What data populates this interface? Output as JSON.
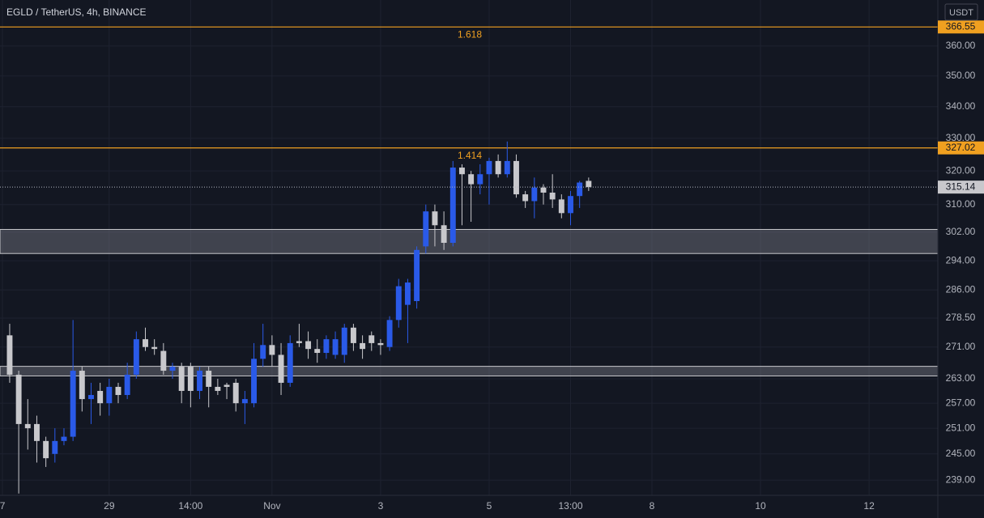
{
  "chart_data": {
    "type": "candlestick",
    "title": "EGLD / TetherUS, 4h, BINANCE",
    "currency": "USDT",
    "log_scale": true,
    "grid": true,
    "up_color": "#2a5ae8",
    "down_color": "#c8c8cc",
    "x": [
      0,
      1,
      2,
      3,
      4,
      5,
      6,
      7,
      8,
      9,
      10,
      11,
      12,
      13,
      14,
      15,
      16,
      17,
      18,
      19,
      20,
      21,
      22,
      23,
      24,
      25,
      26,
      27,
      28,
      29,
      30,
      31,
      32,
      33,
      34,
      35,
      36,
      37,
      38,
      39,
      40,
      41,
      42,
      43,
      44,
      45,
      46,
      47,
      48,
      49,
      50,
      51,
      52,
      53,
      54,
      55,
      56,
      57,
      58,
      59,
      60,
      61,
      62,
      63,
      64
    ],
    "open": [
      274,
      264,
      252,
      252,
      248,
      245,
      248,
      249,
      265,
      258,
      260,
      257,
      261,
      259,
      264,
      273,
      271,
      270,
      265,
      266,
      266,
      260,
      265,
      261,
      261.5,
      262,
      257,
      257,
      268,
      271.5,
      269,
      262,
      272.5,
      272.5,
      270.5,
      269.5,
      269,
      269,
      276,
      272,
      274,
      272,
      271,
      278,
      282,
      283,
      298,
      308,
      304,
      299,
      321,
      319,
      316,
      319,
      323,
      319,
      323,
      313,
      311,
      315,
      313.5,
      311.5,
      307.5,
      312.5,
      317
    ],
    "high": [
      277,
      265,
      258,
      254,
      249,
      251,
      251,
      278,
      266,
      262,
      262,
      263,
      262,
      267,
      275,
      276,
      273,
      272,
      267,
      267,
      267,
      266,
      266,
      263,
      262,
      263,
      260,
      272,
      277,
      274,
      272,
      274,
      277,
      275,
      273,
      274,
      275,
      277,
      277,
      274,
      275,
      273,
      279,
      289,
      289,
      298,
      310,
      310,
      308,
      323,
      322,
      320,
      322,
      324,
      325,
      329,
      325,
      314,
      318,
      316,
      319,
      313,
      314,
      317,
      318
    ],
    "low": [
      262,
      236,
      246,
      243,
      242,
      243,
      247,
      248,
      255,
      252,
      254,
      254,
      257,
      258,
      263,
      270,
      269,
      264,
      263,
      257,
      256,
      258,
      256,
      259,
      258,
      255,
      252,
      256,
      266,
      266,
      259,
      261,
      271,
      268,
      267,
      268,
      268,
      267,
      270,
      268,
      270,
      269,
      270,
      276,
      272,
      281,
      296,
      298,
      297,
      298,
      304,
      305,
      313,
      310,
      318,
      318,
      312,
      309,
      306,
      310,
      309,
      306,
      304,
      309,
      314
    ],
    "close": [
      264,
      252,
      251,
      248,
      244,
      248,
      249,
      265,
      258,
      259,
      257,
      261,
      259,
      264,
      273,
      271,
      270.5,
      265,
      266,
      260,
      260,
      265,
      261,
      260,
      261,
      257,
      258,
      268,
      271.5,
      269,
      262,
      272,
      272,
      270.5,
      269.5,
      273,
      273,
      276,
      272,
      270.5,
      272,
      271.5,
      278,
      287,
      288,
      297,
      308,
      304,
      299,
      321,
      319,
      316,
      319,
      323,
      319,
      323,
      313,
      311,
      315,
      313.5,
      311.5,
      307.5,
      312.5,
      316.5,
      315.14
    ],
    "last_price": 315.14,
    "levels": [
      {
        "label": "1.618",
        "value": 366.55
      },
      {
        "label": "1.414",
        "value": 327.02
      }
    ],
    "level_color": "#f0a020",
    "zones": [
      [
        296,
        302.8
      ],
      [
        263.7,
        266.1
      ]
    ],
    "xlim": [
      -1.07,
      102.6
    ],
    "ylim": [
      235.6,
      376
    ],
    "xticks": [
      {
        "value": -0.8,
        "label": "7"
      },
      {
        "value": 11,
        "label": "29"
      },
      {
        "value": 20,
        "label": "14:00"
      },
      {
        "value": 29,
        "label": "Nov"
      },
      {
        "value": 41,
        "label": "3"
      },
      {
        "value": 53,
        "label": "5"
      },
      {
        "value": 62,
        "label": "13:00"
      },
      {
        "value": 71,
        "label": "8"
      },
      {
        "value": 83,
        "label": "10"
      },
      {
        "value": 95,
        "label": "12"
      }
    ],
    "yticks": [
      {
        "value": 239,
        "label": "239.00"
      },
      {
        "value": 245,
        "label": "245.00"
      },
      {
        "value": 251,
        "label": "251.00"
      },
      {
        "value": 257,
        "label": "257.00"
      },
      {
        "value": 263,
        "label": "263.00"
      },
      {
        "value": 271,
        "label": "271.00"
      },
      {
        "value": 278.5,
        "label": "278.50"
      },
      {
        "value": 286,
        "label": "286.00"
      },
      {
        "value": 294,
        "label": "294.00"
      },
      {
        "value": 302,
        "label": "302.00"
      },
      {
        "value": 310,
        "label": "310.00"
      },
      {
        "value": 320,
        "label": "320.00"
      },
      {
        "value": 330,
        "label": "330.00"
      },
      {
        "value": 340,
        "label": "340.00"
      },
      {
        "value": 350,
        "label": "350.00"
      },
      {
        "value": 360,
        "label": "360.00"
      }
    ]
  }
}
